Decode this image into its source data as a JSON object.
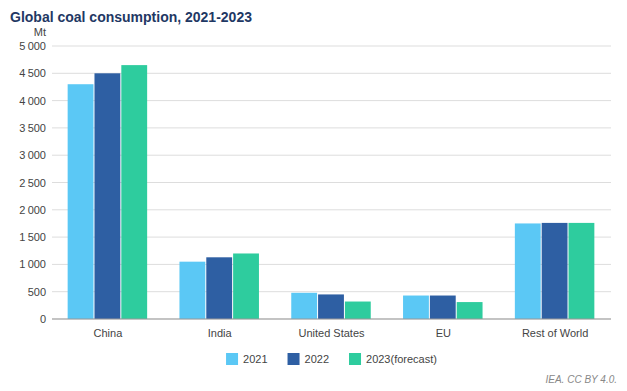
{
  "chart_data": {
    "type": "bar",
    "title": "Global coal consumption, 2021-2023",
    "y_label": "Mt",
    "categories": [
      "China",
      "India",
      "United States",
      "EU",
      "Rest of World"
    ],
    "series": [
      {
        "name": "2021",
        "color": "#5bc8f5",
        "values": [
          4300,
          1050,
          480,
          430,
          1750
        ]
      },
      {
        "name": "2022",
        "color": "#2e5fa3",
        "values": [
          4500,
          1130,
          450,
          430,
          1760
        ]
      },
      {
        "name": "2023(forecast)",
        "color": "#2ecc9e",
        "values": [
          4650,
          1200,
          320,
          310,
          1760
        ]
      }
    ],
    "ylim": [
      0,
      5000
    ],
    "yticks": [
      0,
      500,
      {
        "value": 1000,
        "label": "1 000"
      },
      {
        "value": 1500,
        "label": "1 500"
      },
      {
        "value": 2000,
        "label": "2 000"
      },
      {
        "value": 2500,
        "label": "2 500"
      },
      {
        "value": 3000,
        "label": "3 000"
      },
      {
        "value": 3500,
        "label": "3 500"
      },
      {
        "value": 4000,
        "label": "4 000"
      },
      {
        "value": 4500,
        "label": "4 500"
      },
      {
        "value": 5000,
        "label": "5 000"
      }
    ],
    "grid": true,
    "legend": "bottom",
    "annotations": [
      "IEA. CC BY 4.0."
    ]
  }
}
